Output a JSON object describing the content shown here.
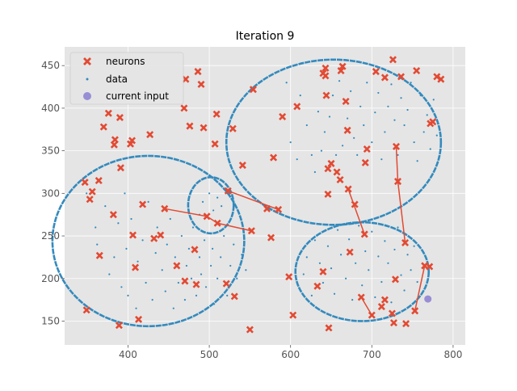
{
  "chart_data": {
    "type": "scatter",
    "title": "Iteration 9",
    "xlabel": "",
    "ylabel": "",
    "xlim": [
      322,
      815
    ],
    "ylim": [
      122,
      472
    ],
    "xticks": [
      400,
      500,
      600,
      700,
      800
    ],
    "yticks": [
      150,
      200,
      250,
      300,
      350,
      400,
      450
    ],
    "grid": true,
    "style": "ggplot",
    "legend": {
      "placement": "top-left",
      "entries": [
        {
          "label": "neurons",
          "marker": "x",
          "color": "#e24a33"
        },
        {
          "label": "data",
          "marker": "dot",
          "color": "#348abd"
        },
        {
          "label": "current input",
          "marker": "circle",
          "color": "#988ed5"
        }
      ]
    },
    "colors": {
      "background": "#e5e5e5",
      "grid": "#ffffff",
      "neurons": "#e24a33",
      "data": "#348abd",
      "current_input": "#988ed5",
      "text": "#555555",
      "title": "#000000"
    },
    "data_shapes": [
      {
        "name": "circle-left",
        "kind": "circle",
        "cx": 425,
        "cy": 244,
        "r": 118,
        "ry": 100
      },
      {
        "name": "circle-small",
        "kind": "circle",
        "cx": 502,
        "cy": 286,
        "r": 28,
        "ry": 33
      },
      {
        "name": "circle-top-right",
        "kind": "circle",
        "cx": 653,
        "cy": 360,
        "r": 132,
        "ry": 97
      },
      {
        "name": "circle-bottom-right",
        "kind": "circle",
        "cx": 688,
        "cy": 208,
        "r": 82,
        "ry": 58
      }
    ],
    "neurons": [
      [
        347,
        313
      ],
      [
        349,
        163
      ],
      [
        353,
        293
      ],
      [
        356,
        302
      ],
      [
        364,
        315
      ],
      [
        365,
        227
      ],
      [
        370,
        378
      ],
      [
        376,
        394
      ],
      [
        382,
        275
      ],
      [
        383,
        357
      ],
      [
        384,
        363
      ],
      [
        389,
        145
      ],
      [
        390,
        389
      ],
      [
        391,
        330
      ],
      [
        403,
        358
      ],
      [
        405,
        362
      ],
      [
        406,
        251
      ],
      [
        409,
        213
      ],
      [
        413,
        152
      ],
      [
        418,
        287
      ],
      [
        427,
        369
      ],
      [
        432,
        247
      ],
      [
        440,
        251
      ],
      [
        445,
        282
      ],
      [
        460,
        215
      ],
      [
        469,
        400
      ],
      [
        470,
        197
      ],
      [
        471,
        434
      ],
      [
        476,
        379
      ],
      [
        482,
        234
      ],
      [
        484,
        193
      ],
      [
        486,
        443
      ],
      [
        490,
        428
      ],
      [
        493,
        377
      ],
      [
        497,
        273
      ],
      [
        507,
        358
      ],
      [
        509,
        393
      ],
      [
        510,
        265
      ],
      [
        521,
        194
      ],
      [
        523,
        303
      ],
      [
        529,
        376
      ],
      [
        531,
        179
      ],
      [
        541,
        333
      ],
      [
        550,
        140
      ],
      [
        552,
        256
      ],
      [
        554,
        422
      ],
      [
        571,
        282
      ],
      [
        576,
        248
      ],
      [
        579,
        342
      ],
      [
        585,
        281
      ],
      [
        590,
        390
      ],
      [
        598,
        202
      ],
      [
        603,
        157
      ],
      [
        608,
        402
      ],
      [
        633,
        191
      ],
      [
        640,
        208
      ],
      [
        640,
        441
      ],
      [
        643,
        438
      ],
      [
        643,
        447
      ],
      [
        644,
        415
      ],
      [
        646,
        299
      ],
      [
        646,
        329
      ],
      [
        647,
        142
      ],
      [
        650,
        335
      ],
      [
        657,
        325
      ],
      [
        661,
        316
      ],
      [
        662,
        444
      ],
      [
        664,
        449
      ],
      [
        668,
        408
      ],
      [
        670,
        374
      ],
      [
        671,
        305
      ],
      [
        673,
        231
      ],
      [
        679,
        287
      ],
      [
        687,
        178
      ],
      [
        691,
        252
      ],
      [
        692,
        336
      ],
      [
        694,
        352
      ],
      [
        700,
        157
      ],
      [
        705,
        443
      ],
      [
        712,
        167
      ],
      [
        716,
        175
      ],
      [
        716,
        436
      ],
      [
        725,
        159
      ],
      [
        726,
        457
      ],
      [
        727,
        148
      ],
      [
        729,
        199
      ],
      [
        730,
        355
      ],
      [
        732,
        314
      ],
      [
        736,
        437
      ],
      [
        741,
        242
      ],
      [
        742,
        147
      ],
      [
        753,
        162
      ],
      [
        755,
        444
      ],
      [
        765,
        215
      ],
      [
        771,
        214
      ],
      [
        772,
        382
      ],
      [
        775,
        384
      ],
      [
        780,
        437
      ],
      [
        785,
        434
      ]
    ],
    "neuron_links": [
      [
        [
          445,
          282
        ],
        [
          497,
          273
        ]
      ],
      [
        [
          497,
          273
        ],
        [
          510,
          265
        ]
      ],
      [
        [
          510,
          265
        ],
        [
          552,
          256
        ]
      ],
      [
        [
          523,
          303
        ],
        [
          585,
          281
        ]
      ],
      [
        [
          671,
          305
        ],
        [
          691,
          252
        ]
      ],
      [
        [
          687,
          178
        ],
        [
          700,
          157
        ]
      ],
      [
        [
          730,
          355
        ],
        [
          732,
          314
        ]
      ],
      [
        [
          732,
          314
        ],
        [
          741,
          242
        ]
      ],
      [
        [
          753,
          162
        ],
        [
          765,
          215
        ]
      ]
    ],
    "data_points": [
      [
        349,
        300
      ],
      [
        360,
        260
      ],
      [
        362,
        240
      ],
      [
        372,
        285
      ],
      [
        377,
        205
      ],
      [
        383,
        225
      ],
      [
        388,
        265
      ],
      [
        392,
        190
      ],
      [
        396,
        300
      ],
      [
        398,
        235
      ],
      [
        400,
        180
      ],
      [
        404,
        270
      ],
      [
        410,
        165
      ],
      [
        412,
        220
      ],
      [
        418,
        245
      ],
      [
        422,
        195
      ],
      [
        425,
        290
      ],
      [
        430,
        175
      ],
      [
        434,
        230
      ],
      [
        436,
        260
      ],
      [
        442,
        210
      ],
      [
        446,
        185
      ],
      [
        448,
        240
      ],
      [
        452,
        270
      ],
      [
        456,
        165
      ],
      [
        458,
        225
      ],
      [
        462,
        195
      ],
      [
        466,
        250
      ],
      [
        470,
        175
      ],
      [
        472,
        215
      ],
      [
        475,
        235
      ],
      [
        478,
        200
      ],
      [
        480,
        260
      ],
      [
        484,
        180
      ],
      [
        488,
        225
      ],
      [
        490,
        205
      ],
      [
        494,
        245
      ],
      [
        496,
        190
      ],
      [
        502,
        215
      ],
      [
        504,
        235
      ],
      [
        506,
        170
      ],
      [
        510,
        200
      ],
      [
        514,
        225
      ],
      [
        518,
        250
      ],
      [
        522,
        180
      ],
      [
        526,
        215
      ],
      [
        530,
        240
      ],
      [
        534,
        200
      ],
      [
        540,
        228
      ],
      [
        545,
        210
      ],
      [
        488,
        275
      ],
      [
        492,
        290
      ],
      [
        500,
        300
      ],
      [
        505,
        280
      ],
      [
        510,
        295
      ],
      [
        515,
        285
      ],
      [
        518,
        305
      ],
      [
        595,
        430
      ],
      [
        600,
        360
      ],
      [
        608,
        340
      ],
      [
        612,
        415
      ],
      [
        620,
        380
      ],
      [
        626,
        345
      ],
      [
        630,
        325
      ],
      [
        634,
        396
      ],
      [
        638,
        350
      ],
      [
        642,
        372
      ],
      [
        648,
        390
      ],
      [
        652,
        415
      ],
      [
        656,
        345
      ],
      [
        660,
        432
      ],
      [
        664,
        356
      ],
      [
        670,
        388
      ],
      [
        674,
        420
      ],
      [
        678,
        365
      ],
      [
        682,
        345
      ],
      [
        686,
        402
      ],
      [
        690,
        380
      ],
      [
        694,
        430
      ],
      [
        700,
        360
      ],
      [
        704,
        395
      ],
      [
        708,
        418
      ],
      [
        712,
        340
      ],
      [
        716,
        372
      ],
      [
        720,
        402
      ],
      [
        724,
        428
      ],
      [
        728,
        386
      ],
      [
        732,
        345
      ],
      [
        736,
        412
      ],
      [
        740,
        380
      ],
      [
        744,
        398
      ],
      [
        748,
        430
      ],
      [
        752,
        360
      ],
      [
        756,
        338
      ],
      [
        760,
        415
      ],
      [
        764,
        372
      ],
      [
        768,
        392
      ],
      [
        772,
        352
      ],
      [
        776,
        410
      ],
      [
        780,
        368
      ],
      [
        616,
        205
      ],
      [
        620,
        225
      ],
      [
        626,
        180
      ],
      [
        630,
        245
      ],
      [
        636,
        218
      ],
      [
        640,
        195
      ],
      [
        646,
        238
      ],
      [
        650,
        212
      ],
      [
        654,
        182
      ],
      [
        658,
        257
      ],
      [
        662,
        228
      ],
      [
        668,
        200
      ],
      [
        672,
        246
      ],
      [
        676,
        175
      ],
      [
        680,
        218
      ],
      [
        684,
        262
      ],
      [
        688,
        192
      ],
      [
        692,
        232
      ],
      [
        696,
        210
      ],
      [
        700,
        255
      ],
      [
        704,
        178
      ],
      [
        708,
        226
      ],
      [
        712,
        196
      ],
      [
        716,
        244
      ],
      [
        720,
        218
      ],
      [
        724,
        172
      ],
      [
        728,
        234
      ],
      [
        732,
        260
      ],
      [
        736,
        204
      ],
      [
        740,
        186
      ],
      [
        744,
        228
      ],
      [
        748,
        210
      ],
      [
        752,
        238
      ],
      [
        756,
        196
      ]
    ],
    "current_input": [
      769,
      176
    ]
  }
}
